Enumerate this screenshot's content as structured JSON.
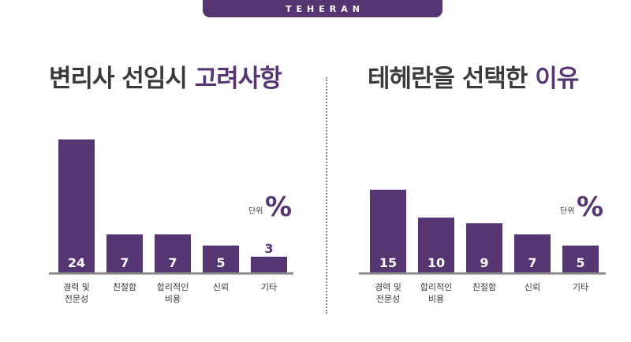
{
  "brand": "TEHERAN",
  "left": {
    "title_main": "변리사 선임시 ",
    "title_highlight": "고려사항"
  },
  "right": {
    "title_main": "테헤란을 선택한 ",
    "title_highlight": "이유"
  },
  "colors": {
    "accent": "#563672",
    "text": "#3a3a3a",
    "baseline": "#888888"
  },
  "chart_data": [
    {
      "type": "bar",
      "title": "변리사 선임시 고려사항",
      "unit_label": "단위",
      "unit_symbol": "%",
      "categories": [
        [
          "경력 및",
          "전문성"
        ],
        [
          "친절함"
        ],
        [
          "합리적인",
          "비용"
        ],
        [
          "신뢰"
        ],
        [
          "기타"
        ]
      ],
      "values": [
        24,
        7,
        7,
        5,
        3
      ],
      "ylim": [
        0,
        24
      ]
    },
    {
      "type": "bar",
      "title": "테헤란을 선택한 이유",
      "unit_label": "단위",
      "unit_symbol": "%",
      "categories": [
        [
          "경력 및",
          "전문성"
        ],
        [
          "합리적인",
          "비용"
        ],
        [
          "친절함"
        ],
        [
          "신뢰"
        ],
        [
          "기타"
        ]
      ],
      "values": [
        15,
        10,
        9,
        7,
        5
      ],
      "ylim": [
        0,
        24
      ]
    }
  ]
}
